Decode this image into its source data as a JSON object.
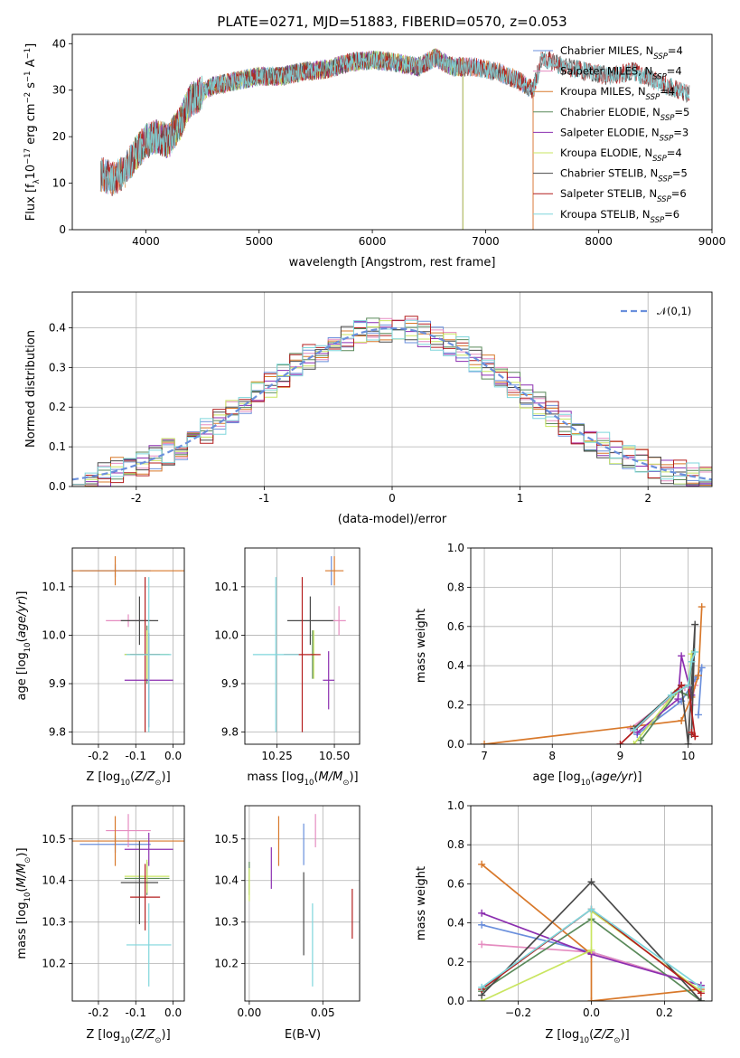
{
  "figure_title": "PLATE=0271, MJD=51883, FIBERID=0570, z=0.053",
  "colors": {
    "Chabrier MILES": "#6a8fdc",
    "Salpeter MILES": "#e58cc0",
    "Kroupa MILES": "#d8782a",
    "Chabrier ELODIE": "#5a8a5a",
    "Salpeter ELODIE": "#8c2fb0",
    "Kroupa ELODIE": "#c9e560",
    "Chabrier STELIB": "#4a4a4a",
    "Salpeter STELIB": "#b41e1e",
    "Kroupa STELIB": "#7fd6dc"
  },
  "models": [
    "Chabrier MILES",
    "Salpeter MILES",
    "Kroupa MILES",
    "Chabrier ELODIE",
    "Salpeter ELODIE",
    "Kroupa ELODIE",
    "Chabrier STELIB",
    "Salpeter STELIB",
    "Kroupa STELIB"
  ],
  "chart_data": [
    {
      "type": "line",
      "id": "spectrum",
      "title": "PLATE=0271, MJD=51883, FIBERID=0570, z=0.053",
      "xlabel": "wavelength [Angstrom, rest frame]",
      "ylabel": "Flux [f_λ10^-17 erg cm^-2 s^-1 A^-1]",
      "xlim": [
        3350,
        9000
      ],
      "ylim": [
        0,
        42
      ],
      "xticks": [
        4000,
        5000,
        6000,
        7000,
        8000,
        9000
      ],
      "yticks": [
        0,
        10,
        20,
        30,
        40
      ],
      "legend_position": "top-right",
      "series": [
        {
          "name": "Chabrier MILES",
          "nssp": 4,
          "x_range": [
            3600,
            7420
          ]
        },
        {
          "name": "Salpeter MILES",
          "nssp": 4,
          "x_range": [
            3600,
            7420
          ]
        },
        {
          "name": "Kroupa MILES",
          "nssp": 4,
          "x_range": [
            3600,
            7420
          ]
        },
        {
          "name": "Chabrier ELODIE",
          "nssp": 5,
          "x_range": [
            3900,
            6800
          ]
        },
        {
          "name": "Salpeter ELODIE",
          "nssp": 3,
          "x_range": [
            3900,
            6800
          ]
        },
        {
          "name": "Kroupa ELODIE",
          "nssp": 4,
          "x_range": [
            3900,
            6800
          ]
        },
        {
          "name": "Chabrier STELIB",
          "nssp": 5,
          "x_range": [
            3600,
            8800
          ]
        },
        {
          "name": "Salpeter STELIB",
          "nssp": 6,
          "x_range": [
            3600,
            8800
          ]
        },
        {
          "name": "Kroupa STELIB",
          "nssp": 6,
          "x_range": [
            3600,
            8800
          ]
        }
      ],
      "envelope": {
        "x": [
          3600,
          3700,
          3800,
          3900,
          4000,
          4100,
          4200,
          4300,
          4400,
          4600,
          4800,
          5000,
          5200,
          5400,
          5600,
          5800,
          6000,
          6200,
          6400,
          6560,
          6700,
          6900,
          7100,
          7300,
          7420,
          7500,
          7700,
          7900,
          8100,
          8300,
          8500,
          8700,
          8800
        ],
        "y": [
          12,
          11,
          12,
          16,
          19,
          20,
          19,
          23,
          28,
          31,
          32,
          33,
          33,
          34,
          34.5,
          36,
          36.5,
          36,
          35,
          37,
          35,
          35,
          34,
          32,
          30,
          37,
          35,
          34,
          33,
          34,
          32,
          30,
          29
        ]
      }
    },
    {
      "type": "line",
      "id": "residuals",
      "xlabel": "(data-model)/error",
      "ylabel": "Normed distribution",
      "xlim": [
        -2.5,
        2.5
      ],
      "ylim": [
        0,
        0.49
      ],
      "xticks": [
        -2,
        -1,
        0,
        1,
        2
      ],
      "yticks": [
        0.0,
        0.1,
        0.2,
        0.3,
        0.4
      ],
      "grid": true,
      "legend": [
        {
          "name": "𝒩(0,1)",
          "style": "dashed",
          "color": "#6a8fdc"
        }
      ],
      "legend_position": "top-right",
      "bin_width": 0.1,
      "series": [
        {
          "name": "𝒩(0,1)",
          "function": "gaussian",
          "mu": 0,
          "sigma": 1
        }
      ]
    },
    {
      "type": "scatter",
      "id": "age_vs_Z",
      "xlabel": "Z [log10(Z/Z⊙)]",
      "ylabel": "age  [log10(age/yr)]",
      "xlim": [
        -0.27,
        0.03
      ],
      "ylim": [
        9.775,
        10.18
      ],
      "xticks": [
        -0.2,
        -0.1,
        0.0
      ],
      "yticks": [
        9.8,
        9.9,
        10.0,
        10.1
      ],
      "grid": true,
      "points": [
        {
          "model": "Chabrier MILES",
          "x": -0.155,
          "xerr": 0.095,
          "y": 10.133,
          "yerr": 0.013
        },
        {
          "model": "Salpeter MILES",
          "x": -0.12,
          "xerr": 0.06,
          "y": 10.03,
          "yerr": 0.013
        },
        {
          "model": "Kroupa MILES",
          "x": -0.155,
          "xerr": 0.19,
          "y": 10.133,
          "yerr": 0.03
        },
        {
          "model": "Chabrier ELODIE",
          "x": -0.07,
          "xerr": 0.06,
          "y": 9.96,
          "yerr": 0.06
        },
        {
          "model": "Salpeter ELODIE",
          "x": -0.065,
          "xerr": 0.065,
          "y": 9.907,
          "yerr": 0.097
        },
        {
          "model": "Kroupa ELODIE",
          "x": -0.07,
          "xerr": 0.06,
          "y": 9.96,
          "yerr": 0.05
        },
        {
          "model": "Chabrier STELIB",
          "x": -0.09,
          "xerr": 0.05,
          "y": 10.03,
          "yerr": 0.05
        },
        {
          "model": "Salpeter STELIB",
          "x": -0.075,
          "xerr": 0.04,
          "y": 9.96,
          "yerr": 0.16
        },
        {
          "model": "Kroupa STELIB",
          "x": -0.065,
          "xerr": 0.06,
          "y": 9.96,
          "yerr": 0.16
        }
      ]
    },
    {
      "type": "scatter",
      "id": "age_vs_mass",
      "xlabel": "mass [log10(M/M⊙)]",
      "ylabel": "",
      "xlim": [
        10.11,
        10.61
      ],
      "ylim": [
        9.775,
        10.18
      ],
      "xticks": [
        10.25,
        10.5
      ],
      "yticks": [
        9.8,
        9.9,
        10.0,
        10.1
      ],
      "grid": true,
      "points": [
        {
          "model": "Chabrier MILES",
          "x": 10.487,
          "xerr": 0.0,
          "y": 10.133,
          "yerr": 0.03
        },
        {
          "model": "Salpeter MILES",
          "x": 10.52,
          "xerr": 0.03,
          "y": 10.03,
          "yerr": 0.03
        },
        {
          "model": "Kroupa MILES",
          "x": 10.5,
          "xerr": 0.04,
          "y": 10.133,
          "yerr": 0.03
        },
        {
          "model": "Chabrier ELODIE",
          "x": 10.405,
          "xerr": 0.01,
          "y": 9.96,
          "yerr": 0.05
        },
        {
          "model": "Salpeter ELODIE",
          "x": 10.475,
          "xerr": 0.025,
          "y": 9.907,
          "yerr": 0.06
        },
        {
          "model": "Kroupa ELODIE",
          "x": 10.41,
          "xerr": 0.01,
          "y": 9.96,
          "yerr": 0.05
        },
        {
          "model": "Chabrier STELIB",
          "x": 10.395,
          "xerr": 0.1,
          "y": 10.03,
          "yerr": 0.05
        },
        {
          "model": "Salpeter STELIB",
          "x": 10.36,
          "xerr": 0.08,
          "y": 9.96,
          "yerr": 0.16
        },
        {
          "model": "Kroupa STELIB",
          "x": 10.245,
          "xerr": 0.1,
          "y": 9.96,
          "yerr": 0.16
        }
      ]
    },
    {
      "type": "line",
      "id": "massweight_vs_age",
      "xlabel": "age  [log10(age/yr)]",
      "ylabel": "mass weight",
      "xlim": [
        6.8,
        10.35
      ],
      "ylim": [
        0,
        1
      ],
      "xticks": [
        7,
        8,
        9,
        10
      ],
      "yticks": [
        0.0,
        0.2,
        0.4,
        0.6,
        0.8,
        1.0
      ],
      "grid": true,
      "series": [
        {
          "model": "Chabrier MILES",
          "x": [
            9.25,
            9.9,
            10.1,
            10.2,
            10.15
          ],
          "y": [
            0.05,
            0.22,
            0.33,
            0.39,
            0.15
          ]
        },
        {
          "model": "Salpeter MILES",
          "x": [
            9.15,
            9.95,
            10.1,
            10.05
          ],
          "y": [
            0.08,
            0.29,
            0.3,
            0.2
          ]
        },
        {
          "model": "Kroupa MILES",
          "x": [
            7.0,
            9.9,
            10.05,
            10.15,
            10.2
          ],
          "y": [
            0.0,
            0.12,
            0.24,
            0.35,
            0.7
          ]
        },
        {
          "model": "Chabrier ELODIE",
          "x": [
            9.3,
            9.85,
            10.0,
            10.05
          ],
          "y": [
            0.02,
            0.27,
            0.25,
            0.42
          ]
        },
        {
          "model": "Salpeter ELODIE",
          "x": [
            9.25,
            9.85,
            9.9,
            10.05
          ],
          "y": [
            0.06,
            0.23,
            0.45,
            0.25
          ]
        },
        {
          "model": "Kroupa ELODIE",
          "x": [
            9.2,
            9.8,
            10.0,
            10.05
          ],
          "y": [
            0.0,
            0.26,
            0.3,
            0.46
          ]
        },
        {
          "model": "Chabrier STELIB",
          "x": [
            9.2,
            9.9,
            10.0,
            10.1,
            10.05
          ],
          "y": [
            0.08,
            0.3,
            0.0,
            0.61,
            0.05
          ]
        },
        {
          "model": "Salpeter STELIB",
          "x": [
            9.0,
            9.9,
            10.0,
            10.1,
            10.05
          ],
          "y": [
            0.0,
            0.3,
            0.3,
            0.04,
            0.06
          ]
        },
        {
          "model": "Kroupa STELIB",
          "x": [
            9.2,
            9.75,
            10.0,
            10.05,
            10.1
          ],
          "y": [
            0.07,
            0.25,
            0.3,
            0.42,
            0.47
          ]
        }
      ]
    },
    {
      "type": "scatter",
      "id": "mass_vs_Z",
      "xlabel": "Z [log10(Z/Z⊙)]",
      "ylabel": "mass [log10(M/M⊙)]",
      "xlim": [
        -0.27,
        0.03
      ],
      "ylim": [
        10.11,
        10.58
      ],
      "xticks": [
        -0.2,
        -0.1,
        0.0
      ],
      "yticks": [
        10.2,
        10.3,
        10.4,
        10.5
      ],
      "grid": true,
      "points": [
        {
          "model": "Chabrier MILES",
          "x": -0.155,
          "xerr": 0.095,
          "y": 10.487,
          "yerr": 0.02
        },
        {
          "model": "Salpeter MILES",
          "x": -0.12,
          "xerr": 0.06,
          "y": 10.52,
          "yerr": 0.04
        },
        {
          "model": "Kroupa MILES",
          "x": -0.155,
          "xerr": 0.19,
          "y": 10.495,
          "yerr": 0.06
        },
        {
          "model": "Chabrier ELODIE",
          "x": -0.07,
          "xerr": 0.06,
          "y": 10.405,
          "yerr": 0.04
        },
        {
          "model": "Salpeter ELODIE",
          "x": -0.065,
          "xerr": 0.065,
          "y": 10.475,
          "yerr": 0.04
        },
        {
          "model": "Kroupa ELODIE",
          "x": -0.07,
          "xerr": 0.06,
          "y": 10.41,
          "yerr": 0.04
        },
        {
          "model": "Chabrier STELIB",
          "x": -0.09,
          "xerr": 0.05,
          "y": 10.395,
          "yerr": 0.1
        },
        {
          "model": "Salpeter STELIB",
          "x": -0.075,
          "xerr": 0.04,
          "y": 10.36,
          "yerr": 0.08
        },
        {
          "model": "Kroupa STELIB",
          "x": -0.065,
          "xerr": 0.06,
          "y": 10.245,
          "yerr": 0.1
        }
      ]
    },
    {
      "type": "scatter",
      "id": "mass_vs_EBV",
      "xlabel": "E(B-V)",
      "ylabel": "",
      "xlim": [
        -0.003,
        0.075
      ],
      "ylim": [
        10.11,
        10.58
      ],
      "xticks": [
        0.0,
        0.05
      ],
      "xtick_labels": [
        "0.00",
        "0.05"
      ],
      "yticks": [
        10.2,
        10.3,
        10.4,
        10.5
      ],
      "grid": true,
      "points": [
        {
          "model": "Chabrier MILES",
          "x": 0.037,
          "y": 10.487,
          "yerr": 0.05
        },
        {
          "model": "Salpeter MILES",
          "x": 0.045,
          "y": 10.52,
          "yerr": 0.04
        },
        {
          "model": "Kroupa MILES",
          "x": 0.02,
          "y": 10.495,
          "yerr": 0.06
        },
        {
          "model": "Chabrier ELODIE",
          "x": 0.0,
          "y": 10.405,
          "yerr": 0.04
        },
        {
          "model": "Salpeter ELODIE",
          "x": 0.015,
          "y": 10.43,
          "yerr": 0.05
        },
        {
          "model": "Kroupa ELODIE",
          "x": 0.0,
          "y": 10.39,
          "yerr": 0.04
        },
        {
          "model": "Chabrier STELIB",
          "x": 0.037,
          "y": 10.32,
          "yerr": 0.1
        },
        {
          "model": "Salpeter STELIB",
          "x": 0.07,
          "y": 10.32,
          "yerr": 0.06
        },
        {
          "model": "Kroupa STELIB",
          "x": 0.043,
          "y": 10.245,
          "yerr": 0.1
        }
      ]
    },
    {
      "type": "line",
      "id": "massweight_vs_Z",
      "xlabel": "Z [log10(Z/Z⊙)]",
      "ylabel": "mass weight",
      "xlim": [
        -0.33,
        0.33
      ],
      "ylim": [
        0,
        1
      ],
      "xticks": [
        -0.2,
        0.0,
        0.2
      ],
      "yticks": [
        0.0,
        0.2,
        0.4,
        0.6,
        0.8,
        1.0
      ],
      "grid": true,
      "series": [
        {
          "model": "Chabrier MILES",
          "x": [
            -0.3,
            0.0,
            0.3
          ],
          "y": [
            0.39,
            0.25,
            0.08
          ]
        },
        {
          "model": "Salpeter MILES",
          "x": [
            -0.3,
            0.0,
            0.3
          ],
          "y": [
            0.29,
            0.25,
            0.08
          ]
        },
        {
          "model": "Kroupa MILES",
          "x": [
            -0.3,
            0.0,
            0.0,
            0.3
          ],
          "y": [
            0.7,
            0.24,
            0.0,
            0.06
          ]
        },
        {
          "model": "Chabrier ELODIE",
          "x": [
            -0.3,
            0.0,
            0.3
          ],
          "y": [
            0.05,
            0.42,
            0.0
          ]
        },
        {
          "model": "Salpeter ELODIE",
          "x": [
            -0.3,
            0.0,
            0.3
          ],
          "y": [
            0.45,
            0.24,
            0.08
          ]
        },
        {
          "model": "Kroupa ELODIE",
          "x": [
            -0.3,
            0.0,
            0.0,
            0.3
          ],
          "y": [
            0.0,
            0.26,
            0.46,
            0.05
          ]
        },
        {
          "model": "Chabrier STELIB",
          "x": [
            -0.3,
            0.0,
            0.3
          ],
          "y": [
            0.03,
            0.61,
            0.0
          ]
        },
        {
          "model": "Salpeter STELIB",
          "x": [
            -0.3,
            0.0,
            0.3
          ],
          "y": [
            0.06,
            0.47,
            0.04
          ]
        },
        {
          "model": "Kroupa STELIB",
          "x": [
            -0.3,
            0.0,
            0.3
          ],
          "y": [
            0.07,
            0.47,
            0.07
          ]
        }
      ]
    }
  ]
}
